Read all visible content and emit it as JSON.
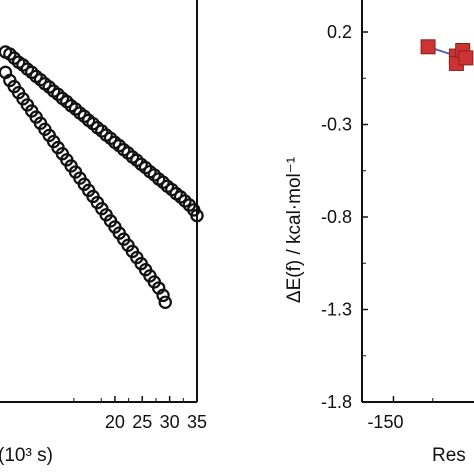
{
  "chart_data": [
    {
      "type": "scatter",
      "title": "",
      "xlabel": "(10³ s)",
      "ylabel": "",
      "xlim": [
        0,
        35
      ],
      "x_ticks": [
        "20",
        "25",
        "30",
        "35"
      ],
      "marker": "open-circle",
      "grid": false,
      "series": [
        {
          "x": [
            0.0,
            0.8,
            1.6,
            2.4,
            3.2,
            4.0,
            4.8,
            5.6,
            6.4,
            7.2,
            8.0,
            8.8,
            9.6,
            10.4,
            11.2,
            12.0,
            12.8,
            13.6,
            14.4,
            15.2,
            16.0,
            16.8,
            17.6,
            18.4,
            19.2,
            20.0,
            20.8,
            21.6,
            22.4,
            23.2,
            24.0,
            24.8,
            25.6,
            26.4,
            27.2,
            28.0,
            28.8,
            29.6,
            30.4,
            31.2,
            32.0,
            32.8,
            33.6,
            34.4,
            35.0
          ],
          "values": [
            0.86,
            0.855,
            0.845,
            0.835,
            0.828,
            0.818,
            0.81,
            0.8,
            0.792,
            0.782,
            0.774,
            0.764,
            0.756,
            0.746,
            0.738,
            0.728,
            0.72,
            0.71,
            0.702,
            0.692,
            0.684,
            0.674,
            0.666,
            0.656,
            0.648,
            0.638,
            0.63,
            0.62,
            0.612,
            0.602,
            0.594,
            0.584,
            0.576,
            0.566,
            0.558,
            0.548,
            0.54,
            0.53,
            0.522,
            0.512,
            0.504,
            0.494,
            0.484,
            0.472,
            0.458
          ]
        },
        {
          "x": [
            0.0,
            0.8,
            1.6,
            2.4,
            3.2,
            4.0,
            4.8,
            5.6,
            6.4,
            7.2,
            8.0,
            8.8,
            9.6,
            10.4,
            11.2,
            12.0,
            12.8,
            13.6,
            14.4,
            15.2,
            16.0,
            16.8,
            17.6,
            18.4,
            19.2,
            20.0,
            20.8,
            21.6,
            22.4,
            23.2,
            24.0,
            24.8,
            25.6,
            26.4,
            27.2,
            28.0,
            28.8,
            29.2
          ],
          "values": [
            0.81,
            0.79,
            0.775,
            0.76,
            0.745,
            0.73,
            0.715,
            0.7,
            0.685,
            0.67,
            0.655,
            0.64,
            0.625,
            0.61,
            0.595,
            0.58,
            0.565,
            0.55,
            0.535,
            0.52,
            0.505,
            0.49,
            0.475,
            0.46,
            0.445,
            0.43,
            0.415,
            0.4,
            0.385,
            0.37,
            0.355,
            0.34,
            0.325,
            0.31,
            0.295,
            0.28,
            0.262,
            0.245
          ]
        }
      ]
    },
    {
      "type": "line",
      "title": "",
      "xlabel": "Res",
      "ylabel": "ΔE(f) / kcal·mol⁻¹",
      "xlim": [
        -170,
        -95
      ],
      "x_ticks": [
        "-150"
      ],
      "ylim": [
        -1.8,
        0.4
      ],
      "y_ticks": [
        "0.2",
        "-0.3",
        "-0.8",
        "-1.3",
        "-1.8"
      ],
      "marker": "filled-square",
      "grid": false,
      "series": [
        {
          "x": [
            -128,
            -110,
            -110,
            -106,
            -104
          ],
          "values": [
            0.12,
            0.07,
            0.03,
            0.1,
            0.06
          ]
        }
      ],
      "colors": {
        "marker": "#cc3333",
        "line": "#5566bb"
      }
    }
  ]
}
